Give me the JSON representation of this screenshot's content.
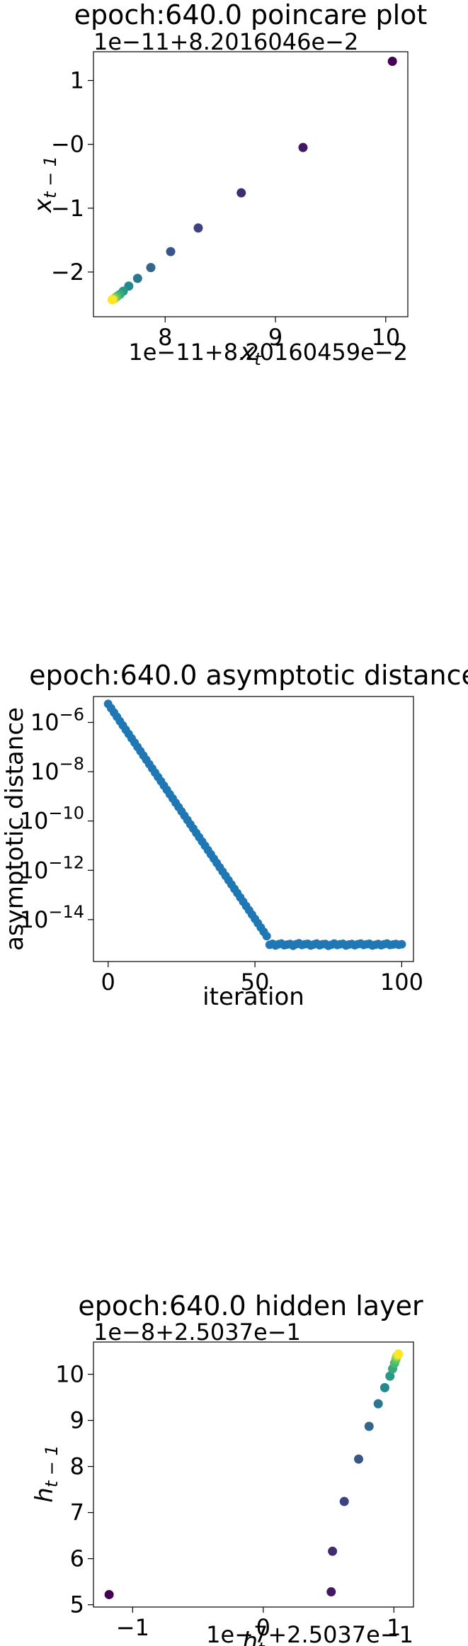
{
  "chart_data": [
    {
      "type": "scatter",
      "title": "epoch:640.0 poincare plot",
      "xlabel": "x_t",
      "ylabel": "x_{t-1}",
      "x_offset_text": "1e−11+8.20160459e−2",
      "y_offset_text": "1e−11+8.2016046e−2",
      "xlim": [
        7.35,
        10.2
      ],
      "ylim": [
        -2.7,
        1.45
      ],
      "x_ticks": [
        {
          "v": 8,
          "label": "8"
        },
        {
          "v": 9,
          "label": "9"
        },
        {
          "v": 10,
          "label": "10"
        }
      ],
      "y_ticks": [
        {
          "v": -2,
          "label": "−2"
        },
        {
          "v": -1,
          "label": "−1"
        },
        {
          "v": 0,
          "label": "−0"
        },
        {
          "v": 1,
          "label": "1"
        }
      ],
      "colormap": "viridis",
      "points": [
        {
          "x": 10.06,
          "y": 1.3
        },
        {
          "x": 9.25,
          "y": -0.05
        },
        {
          "x": 8.69,
          "y": -0.76
        },
        {
          "x": 8.3,
          "y": -1.31
        },
        {
          "x": 8.05,
          "y": -1.68
        },
        {
          "x": 7.87,
          "y": -1.93
        },
        {
          "x": 7.75,
          "y": -2.1
        },
        {
          "x": 7.67,
          "y": -2.22
        },
        {
          "x": 7.62,
          "y": -2.3
        },
        {
          "x": 7.59,
          "y": -2.35
        },
        {
          "x": 7.565,
          "y": -2.38
        },
        {
          "x": 7.55,
          "y": -2.4
        },
        {
          "x": 7.54,
          "y": -2.415
        },
        {
          "x": 7.53,
          "y": -2.425
        },
        {
          "x": 7.525,
          "y": -2.43
        },
        {
          "x": 7.52,
          "y": -2.435
        }
      ]
    },
    {
      "type": "scatter",
      "title": "epoch:640.0 asymptotic distance",
      "xlabel": "iteration",
      "ylabel": "asymptotic distance",
      "yscale": "log",
      "xlim": [
        -5,
        104
      ],
      "ylim_log10": [
        -15.7,
        -4.95
      ],
      "color": "#1f77b4",
      "x_ticks": [
        {
          "v": 0,
          "label": "0"
        },
        {
          "v": 50,
          "label": "50"
        },
        {
          "v": 100,
          "label": "100"
        }
      ],
      "y_ticks": [
        {
          "v": -6,
          "base": "10",
          "exp": "−6"
        },
        {
          "v": -8,
          "base": "10",
          "exp": "−8"
        },
        {
          "v": -10,
          "base": "10",
          "exp": "−10"
        },
        {
          "v": -12,
          "base": "10",
          "exp": "−12"
        },
        {
          "v": -14,
          "base": "10",
          "exp": "−14"
        }
      ],
      "decay": {
        "x_start": 0,
        "x_end": 54,
        "log10_start": -5.25,
        "log10_slope": -0.1744
      },
      "floor_log10": [
        -15.02,
        -14.98,
        -15.05,
        -15.0,
        -14.97,
        -15.04,
        -15.01,
        -14.99,
        -15.06,
        -15.0,
        -14.96,
        -15.03,
        -15.0,
        -14.98,
        -15.05,
        -15.01,
        -14.97,
        -15.04,
        -15.0,
        -14.99,
        -15.06,
        -15.02,
        -14.97,
        -15.03,
        -15.0,
        -14.98,
        -15.05,
        -15.01,
        -14.99,
        -15.04,
        -15.0,
        -14.97,
        -15.03,
        -15.0,
        -14.98,
        -15.05,
        -15.02,
        -14.99,
        -15.04,
        -15.0,
        -14.97,
        -15.03,
        -15.01,
        -14.99,
        -15.02,
        -15.0
      ]
    },
    {
      "type": "scatter",
      "title": "epoch:640.0 hidden layer",
      "xlabel": "h_t",
      "ylabel": "h_{t-1}",
      "x_offset_text": "1e−7+2.5037e−1",
      "y_offset_text": "1e−8+2.5037e−1",
      "xlim": [
        -1.3,
        1.15
      ],
      "ylim": [
        4.95,
        10.7
      ],
      "x_ticks": [
        {
          "v": -1,
          "label": "−1"
        },
        {
          "v": 0,
          "label": "0"
        },
        {
          "v": 1,
          "label": "1"
        }
      ],
      "y_ticks": [
        {
          "v": 5,
          "label": "5"
        },
        {
          "v": 6,
          "label": "6"
        },
        {
          "v": 7,
          "label": "7"
        },
        {
          "v": 8,
          "label": "8"
        },
        {
          "v": 9,
          "label": "9"
        },
        {
          "v": 10,
          "label": "10"
        }
      ],
      "colormap": "viridis",
      "points": [
        {
          "x": -1.18,
          "y": 5.22
        },
        {
          "x": 0.52,
          "y": 5.28
        },
        {
          "x": 0.53,
          "y": 6.16
        },
        {
          "x": 0.62,
          "y": 7.24
        },
        {
          "x": 0.73,
          "y": 8.16
        },
        {
          "x": 0.81,
          "y": 8.87
        },
        {
          "x": 0.88,
          "y": 9.36
        },
        {
          "x": 0.93,
          "y": 9.71
        },
        {
          "x": 0.97,
          "y": 9.96
        },
        {
          "x": 0.99,
          "y": 10.12
        },
        {
          "x": 1.005,
          "y": 10.24
        },
        {
          "x": 1.015,
          "y": 10.32
        },
        {
          "x": 1.02,
          "y": 10.37
        },
        {
          "x": 1.025,
          "y": 10.4
        },
        {
          "x": 1.03,
          "y": 10.42
        },
        {
          "x": 1.035,
          "y": 10.44
        }
      ]
    }
  ]
}
